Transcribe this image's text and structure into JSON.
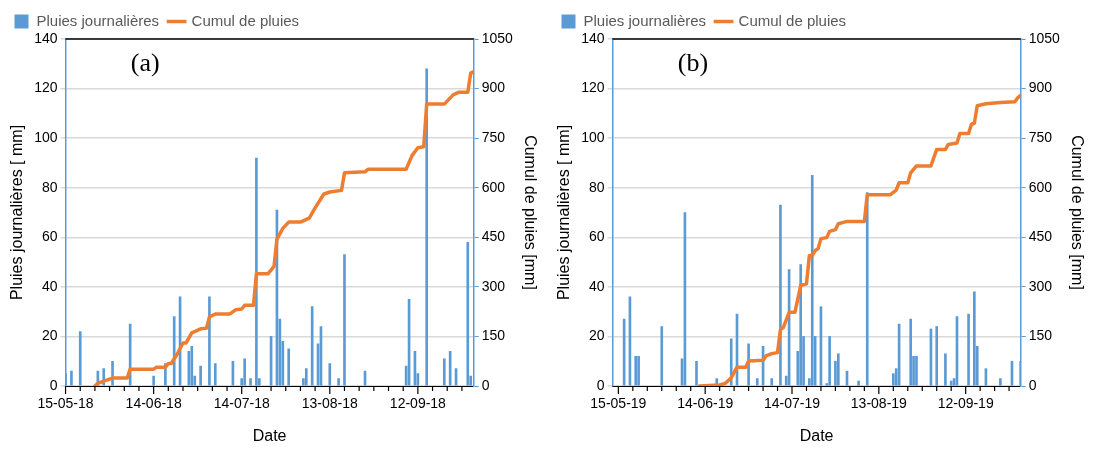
{
  "chart_data": [
    {
      "type": "bar",
      "annotations": [
        "(a)"
      ],
      "xlabel": "Date",
      "ylabel": "Pluies journalières [ mm]",
      "y2label": "Cumul de pluies [mm]",
      "xlim": [
        "--05-15",
        "--10-01"
      ],
      "xticks": [
        {
          "value": "--05-15",
          "label": "15-05-18"
        },
        {
          "value": "--05-20",
          "label": null
        },
        {
          "value": "--05-25",
          "label": null
        },
        {
          "value": "--05-30",
          "label": null
        },
        {
          "value": "--06-04",
          "label": null
        },
        {
          "value": "--06-09",
          "label": null
        },
        {
          "value": "--06-14",
          "label": "14-06-18"
        },
        {
          "value": "--06-19",
          "label": null
        },
        {
          "value": "--06-24",
          "label": null
        },
        {
          "value": "--06-29",
          "label": null
        },
        {
          "value": "--07-04",
          "label": null
        },
        {
          "value": "--07-09",
          "label": null
        },
        {
          "value": "--07-14",
          "label": "14-07-18"
        },
        {
          "value": "--07-19",
          "label": null
        },
        {
          "value": "--07-24",
          "label": null
        },
        {
          "value": "--07-29",
          "label": null
        },
        {
          "value": "--08-03",
          "label": null
        },
        {
          "value": "--08-08",
          "label": null
        },
        {
          "value": "--08-13",
          "label": "13-08-18"
        },
        {
          "value": "--08-18",
          "label": null
        },
        {
          "value": "--08-23",
          "label": null
        },
        {
          "value": "--08-28",
          "label": null
        },
        {
          "value": "--09-02",
          "label": null
        },
        {
          "value": "--09-07",
          "label": null
        },
        {
          "value": "--09-12",
          "label": "12-09-18"
        },
        {
          "value": "--09-17",
          "label": null
        },
        {
          "value": "--09-22",
          "label": null
        },
        {
          "value": "--09-27",
          "label": null
        }
      ],
      "ylim": [
        0,
        140
      ],
      "yticks": [
        0,
        20,
        40,
        60,
        80,
        100,
        120,
        140
      ],
      "y2lim": [
        0,
        1050
      ],
      "y2ticks": [
        0,
        150,
        300,
        450,
        600,
        750,
        900,
        1050
      ],
      "grid": "y",
      "legend": "top",
      "marker": "none",
      "line_style": "solid",
      "series": [
        {
          "name": "Pluies journalières",
          "color": "#5b9bd5",
          "x": [
            "--05-15",
            "--05-17",
            "--05-20",
            "--05-26",
            "--05-28",
            "--05-31",
            "--06-06",
            "--06-14",
            "--06-18",
            "--06-21",
            "--06-23",
            "--06-26",
            "--06-27",
            "--06-28",
            "--06-30",
            "--07-03",
            "--07-05",
            "--07-11",
            "--07-14",
            "--07-15",
            "--07-17",
            "--07-19",
            "--07-20",
            "--07-24",
            "--07-26",
            "--07-27",
            "--07-28",
            "--07-30",
            "--08-04",
            "--08-05",
            "--08-07",
            "--08-09",
            "--08-10",
            "--08-13",
            "--08-16",
            "--08-18",
            "--08-25",
            "--09-08",
            "--09-09",
            "--09-11",
            "--09-12",
            "--09-15",
            "--09-21",
            "--09-23",
            "--09-25",
            "--09-29",
            "--09-30"
          ],
          "values": [
            5,
            6,
            22,
            6,
            7,
            10,
            25,
            4,
            9,
            28,
            36,
            14,
            16,
            4,
            8,
            36,
            9,
            10,
            3,
            11,
            3,
            92,
            3,
            20,
            71,
            27,
            18,
            15,
            3,
            7,
            32,
            17,
            24,
            9,
            3,
            53,
            6,
            8,
            35,
            14,
            5,
            128,
            11,
            14,
            7,
            58,
            4
          ]
        },
        {
          "name": "Cumul de pluies",
          "type": "line",
          "axis": "y2",
          "color": "#ed7d31",
          "x": [
            "--05-25",
            "--05-26",
            "--05-28",
            "--05-31",
            "--06-05",
            "--06-06",
            "--06-14",
            "--06-15",
            "--06-18",
            "--06-19",
            "--06-20",
            "--06-22",
            "--06-24",
            "--06-25",
            "--06-27",
            "--06-30",
            "--07-02",
            "--07-03",
            "--07-05",
            "--07-10",
            "--07-12",
            "--07-14",
            "--07-15",
            "--07-18",
            "--07-19",
            "--07-23",
            "--07-25",
            "--07-26",
            "--07-28",
            "--07-30",
            "--08-03",
            "--08-06",
            "--08-08",
            "--08-11",
            "--08-13",
            "--08-17",
            "--08-18",
            "--08-25",
            "--08-26",
            "--09-08",
            "--09-10",
            "--09-12",
            "--09-14",
            "--09-15",
            "--09-21",
            "--09-24",
            "--09-26",
            "--09-29",
            "--09-30",
            "--10-01"
          ],
          "values": [
            0,
            8,
            15,
            24,
            24,
            51,
            51,
            57,
            57,
            68,
            68,
            96,
            130,
            130,
            161,
            173,
            175,
            209,
            218,
            218,
            231,
            233,
            244,
            244,
            340,
            340,
            362,
            444,
            477,
            496,
            496,
            508,
            539,
            581,
            587,
            592,
            645,
            648,
            656,
            656,
            697,
            721,
            724,
            853,
            853,
            881,
            889,
            889,
            947,
            951
          ]
        }
      ]
    },
    {
      "type": "bar",
      "annotations": [
        "(b)"
      ],
      "xlabel": "Date",
      "ylabel": "Pluies journalières [ mm]",
      "y2label": "Cumul de pluies [mm]",
      "xlim": [
        "--05-13",
        "--10-01"
      ],
      "xticks": [
        {
          "value": "--05-15",
          "label": "15-05-19"
        },
        {
          "value": "--05-20",
          "label": null
        },
        {
          "value": "--05-25",
          "label": null
        },
        {
          "value": "--05-30",
          "label": null
        },
        {
          "value": "--06-04",
          "label": null
        },
        {
          "value": "--06-09",
          "label": null
        },
        {
          "value": "--06-14",
          "label": "14-06-19"
        },
        {
          "value": "--06-19",
          "label": null
        },
        {
          "value": "--06-24",
          "label": null
        },
        {
          "value": "--06-29",
          "label": null
        },
        {
          "value": "--07-04",
          "label": null
        },
        {
          "value": "--07-09",
          "label": null
        },
        {
          "value": "--07-14",
          "label": "14-07-19"
        },
        {
          "value": "--07-19",
          "label": null
        },
        {
          "value": "--07-24",
          "label": null
        },
        {
          "value": "--07-29",
          "label": null
        },
        {
          "value": "--08-03",
          "label": null
        },
        {
          "value": "--08-08",
          "label": null
        },
        {
          "value": "--08-13",
          "label": "13-08-19"
        },
        {
          "value": "--08-18",
          "label": null
        },
        {
          "value": "--08-23",
          "label": null
        },
        {
          "value": "--08-28",
          "label": null
        },
        {
          "value": "--09-02",
          "label": null
        },
        {
          "value": "--09-07",
          "label": null
        },
        {
          "value": "--09-12",
          "label": "12-09-19"
        },
        {
          "value": "--09-17",
          "label": null
        },
        {
          "value": "--09-22",
          "label": null
        },
        {
          "value": "--09-27",
          "label": null
        }
      ],
      "ylim": [
        0,
        140
      ],
      "yticks": [
        0,
        20,
        40,
        60,
        80,
        100,
        120,
        140
      ],
      "y2lim": [
        0,
        1050
      ],
      "y2ticks": [
        0,
        150,
        300,
        450,
        600,
        750,
        900,
        1050
      ],
      "grid": "y",
      "legend": "top",
      "marker": "none",
      "line_style": "solid",
      "series": [
        {
          "name": "Pluies journalières",
          "color": "#5b9bd5",
          "x": [
            "--05-17",
            "--05-19",
            "--05-21",
            "--05-22",
            "--05-30",
            "--06-06",
            "--06-07",
            "--06-11",
            "--06-18",
            "--06-23",
            "--06-25",
            "--06-29",
            "--07-02",
            "--07-04",
            "--07-07",
            "--07-10",
            "--07-12",
            "--07-13",
            "--07-16",
            "--07-17",
            "--07-18",
            "--07-20",
            "--07-21",
            "--07-22",
            "--07-24",
            "--07-26",
            "--07-27",
            "--07-29",
            "--07-30",
            "--08-02",
            "--08-06",
            "--08-09",
            "--08-18",
            "--08-19",
            "--08-20",
            "--08-24",
            "--08-25",
            "--08-26",
            "--08-31",
            "--09-02",
            "--09-05",
            "--09-07",
            "--09-08",
            "--09-09",
            "--09-13",
            "--09-15",
            "--09-16",
            "--09-19",
            "--09-24",
            "--09-28",
            "--10-01"
          ],
          "values": [
            27,
            36,
            12,
            12,
            24,
            11,
            70,
            10,
            3,
            19,
            29,
            17,
            3,
            16,
            3,
            73,
            4,
            47,
            14,
            49,
            20,
            3,
            85,
            20,
            32,
            1,
            20,
            10,
            13,
            6,
            2,
            78,
            5,
            7,
            25,
            27,
            12,
            12,
            23,
            24,
            13,
            2,
            3,
            28,
            29,
            38,
            16,
            7,
            3,
            10,
            10
          ]
        },
        {
          "name": "Cumul de pluies",
          "type": "line",
          "axis": "y2",
          "color": "#ed7d31",
          "x": [
            "--06-12",
            "--06-19",
            "--06-21",
            "--06-23",
            "--06-25",
            "--06-28",
            "--06-29",
            "--07-04",
            "--07-05",
            "--07-07",
            "--07-09",
            "--07-10",
            "--07-11",
            "--07-13",
            "--07-15",
            "--07-17",
            "--07-19",
            "--07-20",
            "--07-21",
            "--07-22",
            "--07-23",
            "--07-24",
            "--07-26",
            "--07-27",
            "--07-29",
            "--07-30",
            "--08-02",
            "--08-08",
            "--08-09",
            "--08-17",
            "--08-19",
            "--08-20",
            "--08-23",
            "--08-24",
            "--08-26",
            "--08-31",
            "--09-01",
            "--09-02",
            "--09-05",
            "--09-06",
            "--09-09",
            "--09-10",
            "--09-13",
            "--09-14",
            "--09-15",
            "--09-16",
            "--09-19",
            "--09-24",
            "--09-29",
            "--09-30",
            "--10-01"
          ],
          "values": [
            0,
            3,
            8,
            25,
            57,
            57,
            76,
            78,
            91,
            98,
            101,
            171,
            177,
            223,
            223,
            304,
            309,
            395,
            395,
            410,
            415,
            446,
            449,
            468,
            473,
            491,
            498,
            498,
            579,
            579,
            593,
            615,
            615,
            645,
            666,
            666,
            691,
            716,
            716,
            731,
            735,
            764,
            764,
            792,
            795,
            848,
            854,
            858,
            860,
            872,
            880
          ]
        }
      ]
    }
  ]
}
